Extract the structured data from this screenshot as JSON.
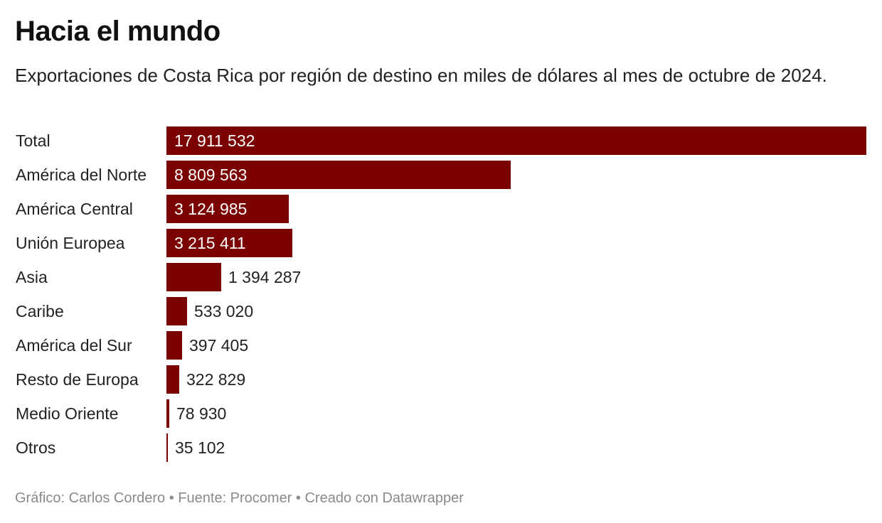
{
  "header": {
    "title": "Hacia el mundo",
    "subtitle": "Exportaciones de Costa Rica por región de destino en miles de dólares al mes de octubre de 2024."
  },
  "colors": {
    "bar": "#7b0000"
  },
  "chart_data": {
    "type": "bar",
    "orientation": "horizontal",
    "title": "Hacia el mundo",
    "subtitle": "Exportaciones de Costa Rica por región de destino en miles de dólares al mes de octubre de 2024.",
    "xlabel": "",
    "ylabel": "",
    "xlim": [
      0,
      17911532
    ],
    "grid": false,
    "categories": [
      "Total",
      "América del Norte",
      "América Central",
      "Unión Europea",
      "Asia",
      "Caribe",
      "América del Sur",
      "Resto de Europa",
      "Medio Oriente",
      "Otros"
    ],
    "values": [
      17911532,
      8809563,
      3124985,
      3215411,
      1394287,
      533020,
      397405,
      322829,
      78930,
      35102
    ],
    "value_labels": [
      "17 911 532",
      "8 809 563",
      "3 124 985",
      "3 215 411",
      "1 394 287",
      "533 020",
      "397 405",
      "322 829",
      "78 930",
      "35 102"
    ]
  },
  "footer": {
    "text": "Gráfico: Carlos Cordero • Fuente: Procomer • Creado con Datawrapper"
  }
}
